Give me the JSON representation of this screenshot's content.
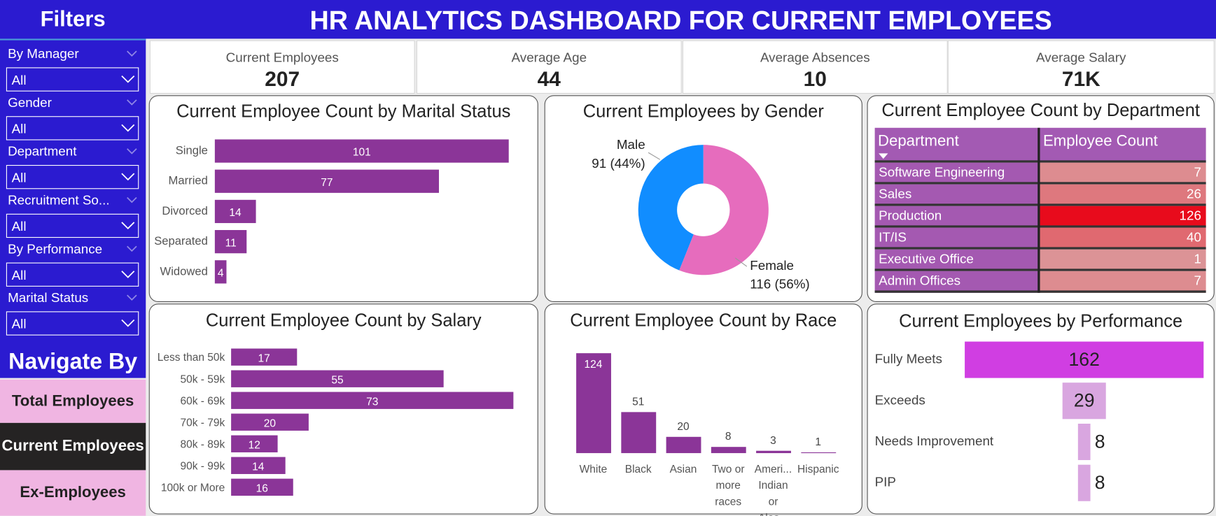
{
  "header": {
    "title": "HR ANALYTICS DASHBOARD FOR CURRENT EMPLOYEES"
  },
  "sidebar": {
    "title": "Filters",
    "filters": [
      {
        "label": "By Manager",
        "value": "All"
      },
      {
        "label": "Gender",
        "value": "All"
      },
      {
        "label": "Department",
        "value": "All"
      },
      {
        "label": "Recruitment So...",
        "value": "All"
      },
      {
        "label": "By Performance",
        "value": "All"
      },
      {
        "label": "Marital Status",
        "value": "All"
      }
    ],
    "navigate_title": "Navigate By",
    "nav": [
      {
        "label": "Total Employees"
      },
      {
        "label": "Current Employees",
        "active": true
      },
      {
        "label": "Ex-Employees"
      }
    ]
  },
  "kpis": [
    {
      "label": "Current Employees",
      "value": 207
    },
    {
      "label": "Average Age",
      "value": 44
    },
    {
      "label": "Average Absences",
      "value": 10
    },
    {
      "label": "Average Salary",
      "value": "71K"
    }
  ],
  "chart_data": [
    {
      "type": "bar",
      "orientation": "horizontal",
      "title": "Current Employee Count by Marital Status",
      "categories": [
        "Single",
        "Married",
        "Divorced",
        "Separated",
        "Widowed"
      ],
      "values": [
        101,
        77,
        14,
        11,
        4
      ],
      "color": "#8b3598"
    },
    {
      "type": "pie",
      "donut": true,
      "title": "Current Employees by Gender",
      "categories": [
        "Male",
        "Female"
      ],
      "values": [
        91,
        116
      ],
      "value_labels": [
        "91 (44%)",
        "116 (56%)"
      ],
      "colors": [
        "#118dff",
        "#e66cbd"
      ]
    },
    {
      "type": "bar",
      "orientation": "horizontal",
      "title": "Current Employee Count by Salary",
      "categories": [
        "Less than 50k",
        "50k - 59k",
        "60k - 69k",
        "70k - 79k",
        "80k - 89k",
        "90k - 99k",
        "100k or More"
      ],
      "values": [
        17,
        55,
        73,
        20,
        12,
        14,
        16
      ],
      "color": "#8b3598"
    },
    {
      "type": "bar",
      "orientation": "vertical",
      "title": "Current Employee Count by Race",
      "categories": [
        "White",
        "Black",
        "Asian",
        "Two or more races",
        "Ameri... Indian or Alas...",
        "Hispanic"
      ],
      "values": [
        124,
        51,
        20,
        8,
        3,
        1
      ],
      "color": "#8b3598"
    },
    {
      "type": "funnel",
      "title": "Current Employees by Performance",
      "categories": [
        "Fully Meets",
        "Exceeds",
        "Needs Improvement",
        "PIP"
      ],
      "values": [
        162,
        29,
        8,
        8
      ],
      "colors": [
        "#d03ee2",
        "#d9a6e0",
        "#d9a6e0",
        "#d9a6e0"
      ]
    }
  ],
  "table": {
    "title": "Current Employee Count by Department",
    "columns": [
      "Department",
      "Employee Count"
    ],
    "rows": [
      [
        "Software Engineering",
        7
      ],
      [
        "Sales",
        26
      ],
      [
        "Production",
        126
      ],
      [
        "IT/IS",
        40
      ],
      [
        "Executive Office",
        1
      ],
      [
        "Admin Offices",
        7
      ]
    ]
  }
}
